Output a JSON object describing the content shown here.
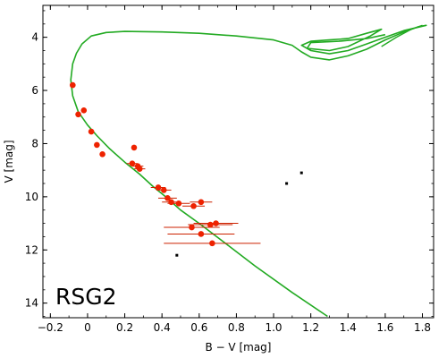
{
  "chart_data": {
    "type": "scatter",
    "title": "",
    "xlabel": "B − V [mag]",
    "ylabel": "V [mag]",
    "xlim": [
      -0.24,
      1.86
    ],
    "ylim": [
      14.55,
      2.8
    ],
    "y_inverted": true,
    "grid": false,
    "xticks": [
      -0.2,
      0.0,
      0.2,
      0.4,
      0.6,
      0.8,
      1.0,
      1.2,
      1.4,
      1.6,
      1.8
    ],
    "xtick_labels": [
      "−0.2",
      "0",
      "0.2",
      "0.4",
      "0.6",
      "0.8",
      "1.0",
      "1.2",
      "1.4",
      "1.6",
      "1.8"
    ],
    "yticks": [
      4,
      6,
      8,
      10,
      12,
      14
    ],
    "ytick_labels": [
      "4",
      "6",
      "8",
      "10",
      "12",
      "14"
    ],
    "annotation": "RSG2",
    "colors": {
      "isochrone": "#22aa22",
      "members": "#ee2200",
      "field": "#000000",
      "axes": "#000000"
    },
    "isochrone": {
      "name": "",
      "main": [
        [
          1.29,
          14.5
        ],
        [
          1.1,
          13.6
        ],
        [
          0.9,
          12.6
        ],
        [
          0.75,
          11.8
        ],
        [
          0.6,
          11.0
        ],
        [
          0.5,
          10.5
        ],
        [
          0.42,
          10.0
        ],
        [
          0.35,
          9.6
        ],
        [
          0.28,
          9.15
        ],
        [
          0.2,
          8.7
        ],
        [
          0.12,
          8.2
        ],
        [
          0.05,
          7.7
        ],
        [
          0.0,
          7.3
        ],
        [
          -0.05,
          6.8
        ],
        [
          -0.08,
          6.2
        ],
        [
          -0.09,
          5.6
        ],
        [
          -0.08,
          5.0
        ],
        [
          -0.06,
          4.6
        ],
        [
          -0.03,
          4.25
        ],
        [
          0.02,
          3.95
        ],
        [
          0.1,
          3.82
        ],
        [
          0.2,
          3.78
        ],
        [
          0.4,
          3.8
        ],
        [
          0.6,
          3.85
        ],
        [
          0.8,
          3.95
        ],
        [
          1.0,
          4.1
        ],
        [
          1.1,
          4.3
        ],
        [
          1.15,
          4.55
        ],
        [
          1.2,
          4.75
        ],
        [
          1.3,
          4.85
        ],
        [
          1.4,
          4.7
        ],
        [
          1.5,
          4.45
        ],
        [
          1.6,
          4.1
        ],
        [
          1.7,
          3.8
        ],
        [
          1.78,
          3.6
        ],
        [
          1.82,
          3.55
        ],
        [
          1.7,
          3.75
        ],
        [
          1.6,
          4.0
        ],
        [
          1.5,
          4.25
        ],
        [
          1.4,
          4.5
        ],
        [
          1.3,
          4.62
        ],
        [
          1.2,
          4.5
        ],
        [
          1.15,
          4.3
        ],
        [
          1.2,
          4.15
        ],
        [
          1.3,
          4.1
        ],
        [
          1.4,
          4.05
        ],
        [
          1.5,
          3.85
        ],
        [
          1.58,
          3.7
        ],
        [
          1.52,
          3.95
        ],
        [
          1.4,
          4.35
        ],
        [
          1.3,
          4.5
        ],
        [
          1.18,
          4.42
        ],
        [
          1.2,
          4.2
        ],
        [
          1.35,
          4.15
        ],
        [
          1.5,
          4.05
        ],
        [
          1.6,
          3.9
        ]
      ],
      "tail": [
        [
          1.58,
          4.35
        ],
        [
          1.66,
          4.0
        ],
        [
          1.74,
          3.7
        ],
        [
          1.8,
          3.55
        ]
      ]
    },
    "members": [
      {
        "x": -0.08,
        "y": 5.8,
        "xerr": 0.0,
        "yerr": 0.0
      },
      {
        "x": -0.05,
        "y": 6.9,
        "xerr": 0.0,
        "yerr": 0.0
      },
      {
        "x": -0.02,
        "y": 6.75,
        "xerr": 0.0,
        "yerr": 0.0
      },
      {
        "x": 0.02,
        "y": 7.55,
        "xerr": 0.0,
        "yerr": 0.0
      },
      {
        "x": 0.05,
        "y": 8.05,
        "xerr": 0.0,
        "yerr": 0.0
      },
      {
        "x": 0.08,
        "y": 8.4,
        "xerr": 0.0,
        "yerr": 0.0
      },
      {
        "x": 0.25,
        "y": 8.15,
        "xerr": 0.0,
        "yerr": 0.0
      },
      {
        "x": 0.24,
        "y": 8.75,
        "xerr": 0.03,
        "yerr": 0.0
      },
      {
        "x": 0.27,
        "y": 8.85,
        "xerr": 0.03,
        "yerr": 0.0
      },
      {
        "x": 0.28,
        "y": 8.95,
        "xerr": 0.03,
        "yerr": 0.0
      },
      {
        "x": 0.38,
        "y": 9.65,
        "xerr": 0.04,
        "yerr": 0.0
      },
      {
        "x": 0.41,
        "y": 9.75,
        "xerr": 0.04,
        "yerr": 0.0
      },
      {
        "x": 0.43,
        "y": 10.05,
        "xerr": 0.05,
        "yerr": 0.0
      },
      {
        "x": 0.45,
        "y": 10.2,
        "xerr": 0.05,
        "yerr": 0.0
      },
      {
        "x": 0.49,
        "y": 10.25,
        "xerr": 0.06,
        "yerr": 0.0
      },
      {
        "x": 0.57,
        "y": 10.35,
        "xerr": 0.06,
        "yerr": 0.0
      },
      {
        "x": 0.61,
        "y": 10.2,
        "xerr": 0.06,
        "yerr": 0.0
      },
      {
        "x": 0.66,
        "y": 11.05,
        "xerr": 0.12,
        "yerr": 0.0
      },
      {
        "x": 0.69,
        "y": 11.0,
        "xerr": 0.12,
        "yerr": 0.0
      },
      {
        "x": 0.56,
        "y": 11.15,
        "xerr": 0.15,
        "yerr": 0.0
      },
      {
        "x": 0.61,
        "y": 11.4,
        "xerr": 0.18,
        "yerr": 0.0
      },
      {
        "x": 0.67,
        "y": 11.75,
        "xerr": 0.26,
        "yerr": 0.0
      }
    ],
    "field_stars": [
      {
        "x": 1.07,
        "y": 9.5
      },
      {
        "x": 1.15,
        "y": 9.1
      },
      {
        "x": 0.48,
        "y": 12.2
      }
    ]
  }
}
